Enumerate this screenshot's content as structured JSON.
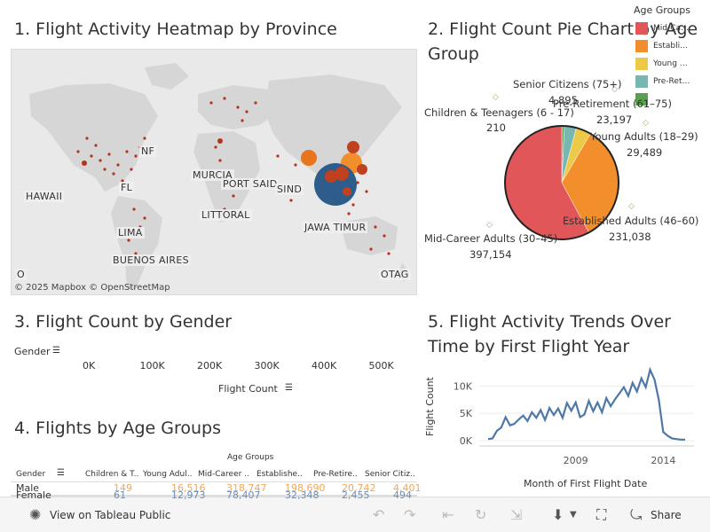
{
  "titles": {
    "map": "1. Flight Activity Heatmap by Province",
    "pie": "2. Flight Count Pie Chart by Age\nGroup",
    "gender": "3. Flight Count by Gender",
    "age_table": "4. Flights by Age Groups",
    "trend": "5. Flight Activity Trends Over\nTime by First Flight Year"
  },
  "map": {
    "labels": [
      "NF",
      "HAWAII",
      "FL",
      "MURCIA",
      "PORT SAID",
      "SIND",
      "LITTORAL",
      "LIMA",
      "JAWA TIMUR",
      "BUENOS AIRES",
      "O",
      "OTAG"
    ],
    "attribution": "© 2025 Mapbox  © OpenStreetMap"
  },
  "legend": {
    "title": "Age Groups",
    "items": [
      {
        "label": "Mid-Ca…",
        "color": "#e15759"
      },
      {
        "label": "Establi…",
        "color": "#f28e2b"
      },
      {
        "label": "Young …",
        "color": "#edc948"
      },
      {
        "label": "Pre-Ret…",
        "color": "#76b7b2"
      },
      {
        "label": "",
        "color": "#59a14f"
      }
    ]
  },
  "chart_data": [
    {
      "type": "pie",
      "title": "2. Flight Count Pie Chart by Age Group",
      "slices": [
        {
          "name": "Mid-Career Adults (30–45)",
          "value": 397154,
          "color": "#e15759"
        },
        {
          "name": "Established Adults (46–60)",
          "value": 231038,
          "color": "#f28e2b"
        },
        {
          "name": "Young Adults (18–29)",
          "value": 29489,
          "color": "#edc948"
        },
        {
          "name": "Pre-Retirement (61–75)",
          "value": 23197,
          "color": "#76b7b2"
        },
        {
          "name": "Senior Citizens (75+)",
          "value": 4895,
          "color": "#59a14f"
        },
        {
          "name": "Children & Teenagers (6 - 17)",
          "value": 210,
          "color": "#4e79a7"
        }
      ],
      "value_labels": [
        "397,154",
        "231,038",
        "29,489",
        "23,197",
        "4,895",
        "210"
      ]
    },
    {
      "type": "bar",
      "title": "3. Flight Count by Gender",
      "ylabel": "Gender",
      "xlabel": "Flight Count",
      "x_ticks": [
        "0K",
        "100K",
        "200K",
        "300K",
        "400K",
        "500K"
      ]
    },
    {
      "type": "table",
      "title": "4. Flights by Age Groups",
      "column_group": "Age Groups",
      "row_header": "Gender",
      "columns": [
        "Children & T..",
        "Young Adul..",
        "Mid-Career ..",
        "Establishe..",
        "Pre-Retire..",
        "Senior Citiz.."
      ],
      "rows": [
        {
          "label": "Male",
          "values": [
            "149",
            "16,516",
            "318,747",
            "198,690",
            "20,742",
            "4,401"
          ]
        },
        {
          "label": "Female",
          "values": [
            "61",
            "12,973",
            "78,407",
            "32,348",
            "2,455",
            "494"
          ]
        }
      ]
    },
    {
      "type": "line",
      "title": "5. Flight Activity Trends Over Time by First Flight Year",
      "xlabel": "Month of First Flight Date",
      "ylabel": "Flight Count",
      "x_ticks": [
        "2009",
        "2014"
      ],
      "y_ticks": [
        "0K",
        "5K",
        "10K"
      ],
      "ylim": [
        0,
        13000
      ],
      "x": [
        "2004-01",
        "2004-04",
        "2004-07",
        "2004-10",
        "2005-01",
        "2005-04",
        "2005-07",
        "2005-10",
        "2006-01",
        "2006-04",
        "2006-07",
        "2006-10",
        "2007-01",
        "2007-04",
        "2007-07",
        "2007-10",
        "2008-01",
        "2008-04",
        "2008-07",
        "2008-10",
        "2009-01",
        "2009-04",
        "2009-07",
        "2009-10",
        "2010-01",
        "2010-04",
        "2010-07",
        "2010-10",
        "2011-01",
        "2011-04",
        "2011-07",
        "2011-10",
        "2012-01",
        "2012-04",
        "2012-07",
        "2012-10",
        "2013-01",
        "2013-04",
        "2013-07",
        "2013-10",
        "2014-01",
        "2014-04",
        "2014-07",
        "2014-10",
        "2015-01",
        "2015-04"
      ],
      "series": [
        {
          "values": [
            300,
            400,
            1800,
            2400,
            4300,
            2800,
            3100,
            3900,
            4600,
            3600,
            5200,
            4200,
            5600,
            3800,
            6000,
            4700,
            5900,
            4200,
            6900,
            5500,
            7000,
            4300,
            4800,
            7300,
            5400,
            7000,
            5200,
            7800,
            6300,
            7600,
            8700,
            9800,
            8200,
            10600,
            9000,
            11400,
            9800,
            13000,
            11200,
            7400,
            1600,
            900,
            400,
            300,
            200,
            200
          ]
        }
      ]
    }
  ],
  "toolbar": {
    "view_label": "View on Tableau Public",
    "share_label": "Share"
  }
}
